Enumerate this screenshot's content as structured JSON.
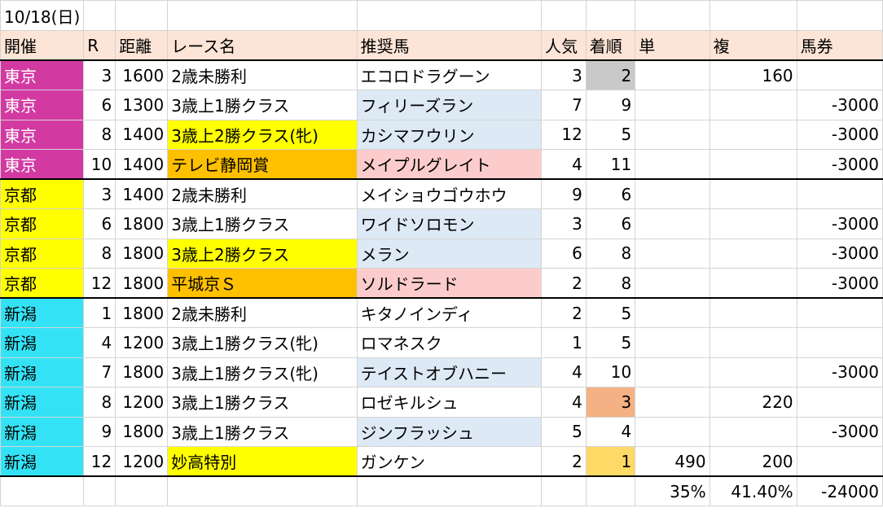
{
  "date": "10/18(日)",
  "headers": [
    "開催",
    "R",
    "距離",
    "レース名",
    "推奨馬",
    "人気",
    "着順",
    "単",
    "複",
    "馬券"
  ],
  "colors": {
    "tokyo": "#d23aa2",
    "kyoto": "#ffff00",
    "niigata": "#33e3f5",
    "header_bg": "#fce4d6",
    "rec_blue": "#dde9f5",
    "rec_pink": "#fccccc",
    "race_yellow": "#ffff00",
    "race_orange": "#ffc000",
    "rank_gray": "#c9c9c9",
    "rank_salmon": "#f4b183",
    "rank_gold": "#ffd966"
  },
  "rows": [
    {
      "venue": "東京",
      "r": "3",
      "dist": "1600",
      "race": "2歳未勝利",
      "horse": "エコロドラグーン",
      "pop": "3",
      "rank": "2",
      "win": "",
      "place": "160",
      "bet": ""
    },
    {
      "venue": "東京",
      "r": "6",
      "dist": "1300",
      "race": "3歳上1勝クラス",
      "horse": "フィリーズラン",
      "pop": "7",
      "rank": "9",
      "win": "",
      "place": "",
      "bet": "-3000"
    },
    {
      "venue": "東京",
      "r": "8",
      "dist": "1400",
      "race": "3歳上2勝クラス(牝)",
      "horse": "カシマフウリン",
      "pop": "12",
      "rank": "5",
      "win": "",
      "place": "",
      "bet": "-3000"
    },
    {
      "venue": "東京",
      "r": "10",
      "dist": "1400",
      "race": "テレビ静岡賞",
      "horse": "メイプルグレイト",
      "pop": "4",
      "rank": "11",
      "win": "",
      "place": "",
      "bet": "-3000"
    },
    {
      "venue": "京都",
      "r": "3",
      "dist": "1400",
      "race": "2歳未勝利",
      "horse": "メイショウゴウホウ",
      "pop": "9",
      "rank": "6",
      "win": "",
      "place": "",
      "bet": ""
    },
    {
      "venue": "京都",
      "r": "6",
      "dist": "1800",
      "race": "3歳上1勝クラス",
      "horse": "ワイドソロモン",
      "pop": "3",
      "rank": "6",
      "win": "",
      "place": "",
      "bet": "-3000"
    },
    {
      "venue": "京都",
      "r": "8",
      "dist": "1800",
      "race": "3歳上2勝クラス",
      "horse": "メラン",
      "pop": "6",
      "rank": "8",
      "win": "",
      "place": "",
      "bet": "-3000"
    },
    {
      "venue": "京都",
      "r": "12",
      "dist": "1800",
      "race": "平城京Ｓ",
      "horse": "ソルドラード",
      "pop": "2",
      "rank": "8",
      "win": "",
      "place": "",
      "bet": "-3000"
    },
    {
      "venue": "新潟",
      "r": "1",
      "dist": "1800",
      "race": "2歳未勝利",
      "horse": "キタノインディ",
      "pop": "2",
      "rank": "5",
      "win": "",
      "place": "",
      "bet": ""
    },
    {
      "venue": "新潟",
      "r": "4",
      "dist": "1200",
      "race": "3歳上1勝クラス(牝)",
      "horse": "ロマネスク",
      "pop": "1",
      "rank": "5",
      "win": "",
      "place": "",
      "bet": ""
    },
    {
      "venue": "新潟",
      "r": "7",
      "dist": "1800",
      "race": "3歳上1勝クラス(牝)",
      "horse": "テイストオブハニー",
      "pop": "4",
      "rank": "10",
      "win": "",
      "place": "",
      "bet": "-3000"
    },
    {
      "venue": "新潟",
      "r": "8",
      "dist": "1200",
      "race": "3歳上1勝クラス",
      "horse": "ロゼキルシュ",
      "pop": "4",
      "rank": "3",
      "win": "",
      "place": "220",
      "bet": ""
    },
    {
      "venue": "新潟",
      "r": "9",
      "dist": "1800",
      "race": "3歳上1勝クラス",
      "horse": "ジンフラッシュ",
      "pop": "5",
      "rank": "4",
      "win": "",
      "place": "",
      "bet": "-3000"
    },
    {
      "venue": "新潟",
      "r": "12",
      "dist": "1200",
      "race": "妙高特別",
      "horse": "ガンケン",
      "pop": "2",
      "rank": "1",
      "win": "490",
      "place": "200",
      "bet": ""
    }
  ],
  "summary": {
    "win": "35%",
    "place": "41.40%",
    "bet": "-24000"
  }
}
